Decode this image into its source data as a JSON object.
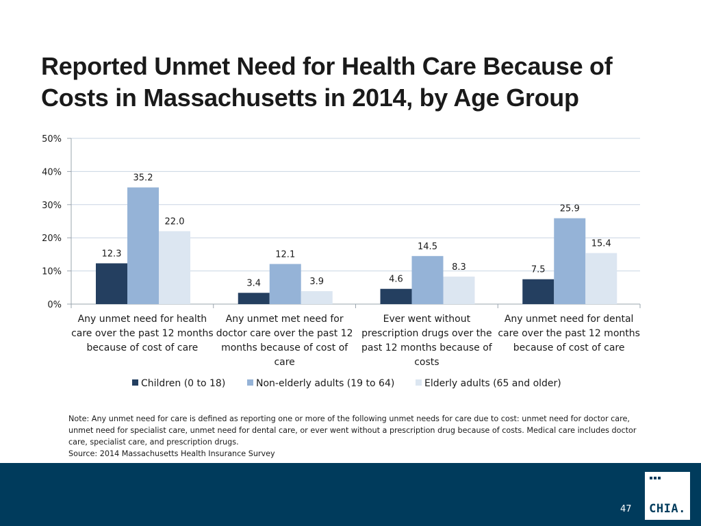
{
  "slide": {
    "title": "Reported Unmet Need for Health Care Because of Costs in Massachusetts in 2014, by Age Group",
    "page_number": "47",
    "logo_text": "CHIA.",
    "note_lines": [
      "Note: Any unmet need for care is defined as reporting one or more of the following unmet needs for care due to cost: unmet need for doctor care, unmet need for specialist care, unmet need for dental care, or ever went without a prescription drug because of costs. Medical care includes doctor care, specialist care, and prescription drugs.",
      "Source:  2014 Massachusetts Health Insurance Survey"
    ],
    "colors": {
      "footer_bar": "#003b5c",
      "title_text": "#1a1a1a"
    }
  },
  "chart_data": {
    "type": "bar",
    "title": "",
    "xlabel": "",
    "ylabel": "",
    "ylim": [
      0,
      50
    ],
    "yticks": [
      "0%",
      "10%",
      "20%",
      "30%",
      "40%",
      "50%"
    ],
    "ytick_values": [
      0,
      10,
      20,
      30,
      40,
      50
    ],
    "grid": true,
    "legend_position": "bottom",
    "categories": [
      "Any unmet need for health care over the past 12 months because of cost of care",
      "Any unmet met need for doctor care over the past 12 months because of cost of care",
      "Ever went without prescription drugs over the past 12 months because of costs",
      "Any unmet need for dental care over the past 12 months because of cost of care"
    ],
    "series": [
      {
        "name": "Children (0 to 18)",
        "color": "#243f60",
        "values": [
          12.3,
          3.4,
          4.6,
          7.5
        ],
        "labels": [
          "12.3",
          "3.4",
          "4.6",
          "7.5"
        ]
      },
      {
        "name": "Non-elderly adults (19 to 64)",
        "color": "#95b3d7",
        "values": [
          35.2,
          12.1,
          14.5,
          25.9
        ],
        "labels": [
          "35.2",
          "12.1",
          "14.5",
          "25.9"
        ]
      },
      {
        "name": "Elderly adults (65 and older)",
        "color": "#dce6f1",
        "values": [
          22.0,
          3.9,
          8.3,
          15.4
        ],
        "labels": [
          "22.0",
          "3.9",
          "8.3",
          "15.4"
        ]
      }
    ]
  }
}
